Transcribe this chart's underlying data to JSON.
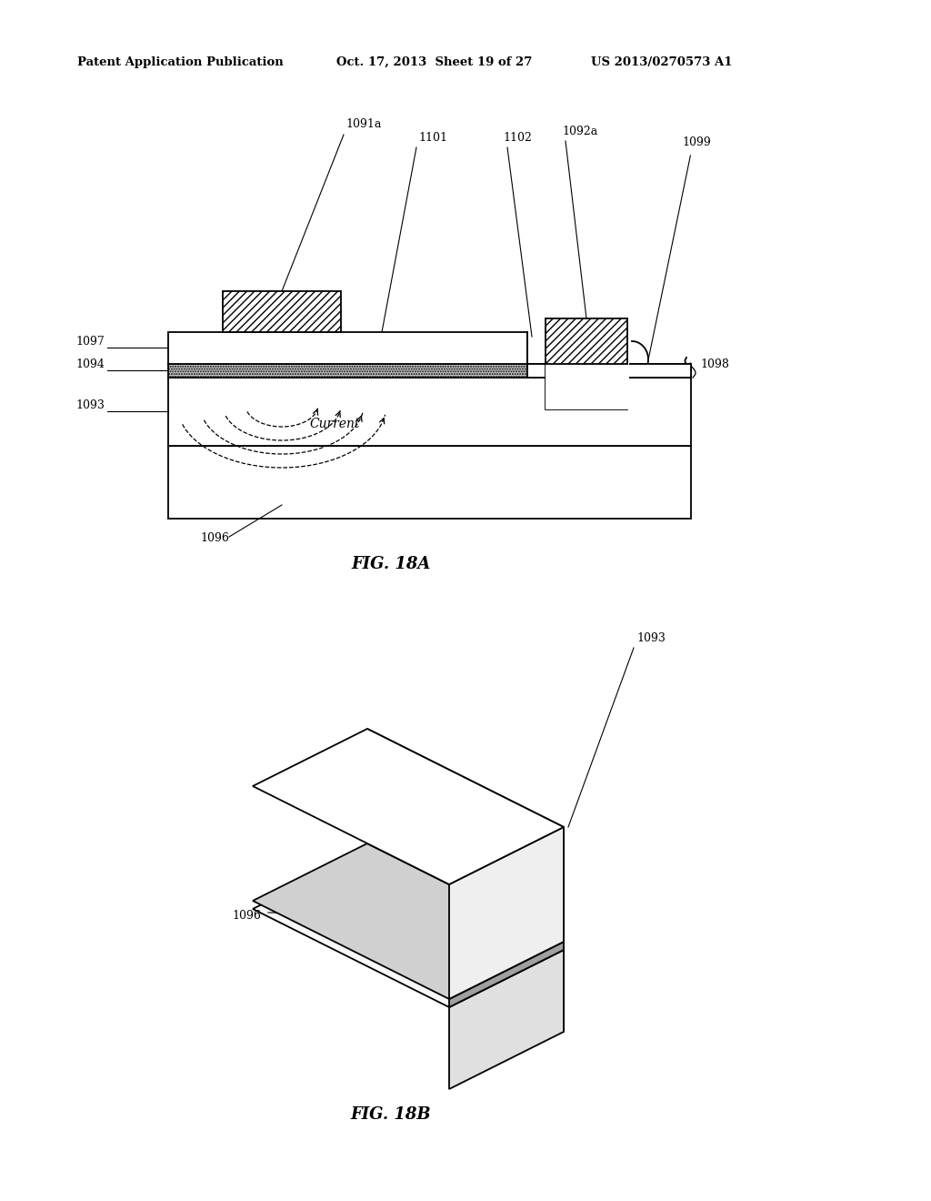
{
  "bg_color": "#ffffff",
  "line_color": "#000000",
  "header_left": "Patent Application Publication",
  "header_mid": "Oct. 17, 2013  Sheet 19 of 27",
  "header_right": "US 2013/0270573 A1",
  "fig18a_label": "FIG. 18A",
  "fig18b_label": "FIG. 18B"
}
